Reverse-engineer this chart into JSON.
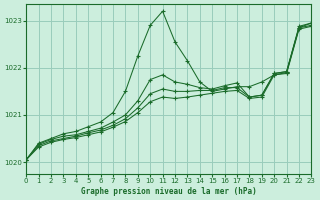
{
  "bg_color": "#cceedd",
  "grid_color": "#99ccbb",
  "line_color": "#1a6b2a",
  "ylim": [
    1019.75,
    1023.35
  ],
  "xlim": [
    0,
    23
  ],
  "yticks": [
    1020,
    1021,
    1022,
    1023
  ],
  "xticks": [
    0,
    1,
    2,
    3,
    4,
    5,
    6,
    7,
    8,
    9,
    10,
    11,
    12,
    13,
    14,
    15,
    16,
    17,
    18,
    19,
    20,
    21,
    22,
    23
  ],
  "xlabel": "Graphe pression niveau de la mer (hPa)",
  "series": [
    {
      "x": [
        0,
        1,
        2,
        3,
        4,
        5,
        6,
        7,
        8,
        9,
        10,
        11,
        12,
        13,
        14,
        15,
        16,
        17,
        18,
        19,
        20,
        21,
        22,
        23
      ],
      "y": [
        1020.05,
        1020.4,
        1020.5,
        1020.6,
        1020.65,
        1020.75,
        1020.85,
        1021.05,
        1021.5,
        1022.25,
        1022.9,
        1023.2,
        1022.55,
        1022.15,
        1021.7,
        1021.5,
        1021.55,
        1021.6,
        1021.6,
        1021.7,
        1021.85,
        1021.9,
        1022.85,
        1022.95
      ]
    },
    {
      "x": [
        0,
        1,
        2,
        3,
        4,
        5,
        6,
        7,
        8,
        9,
        10,
        11,
        12,
        13,
        14,
        15,
        16,
        17,
        18,
        19,
        20,
        21,
        22,
        23
      ],
      "y": [
        1020.05,
        1020.38,
        1020.48,
        1020.55,
        1020.58,
        1020.65,
        1020.72,
        1020.85,
        1021.0,
        1021.3,
        1021.75,
        1021.85,
        1021.7,
        1021.65,
        1021.58,
        1021.55,
        1021.62,
        1021.68,
        1021.38,
        1021.42,
        1021.88,
        1021.92,
        1022.88,
        1022.95
      ]
    },
    {
      "x": [
        0,
        1,
        2,
        3,
        4,
        5,
        6,
        7,
        8,
        9,
        10,
        11,
        12,
        13,
        14,
        15,
        16,
        17,
        18,
        19,
        20,
        21,
        22,
        23
      ],
      "y": [
        1020.05,
        1020.35,
        1020.45,
        1020.5,
        1020.55,
        1020.62,
        1020.68,
        1020.78,
        1020.92,
        1021.15,
        1021.45,
        1021.55,
        1021.5,
        1021.5,
        1021.52,
        1021.52,
        1021.58,
        1021.58,
        1021.38,
        1021.42,
        1021.88,
        1021.92,
        1022.85,
        1022.9
      ]
    },
    {
      "x": [
        0,
        1,
        2,
        3,
        4,
        5,
        6,
        7,
        8,
        9,
        10,
        11,
        12,
        13,
        14,
        15,
        16,
        17,
        18,
        19,
        20,
        21,
        22,
        23
      ],
      "y": [
        1020.05,
        1020.32,
        1020.42,
        1020.48,
        1020.52,
        1020.58,
        1020.64,
        1020.74,
        1020.86,
        1021.05,
        1021.28,
        1021.38,
        1021.35,
        1021.38,
        1021.42,
        1021.46,
        1021.5,
        1021.52,
        1021.35,
        1021.38,
        1021.85,
        1021.88,
        1022.82,
        1022.88
      ]
    }
  ]
}
